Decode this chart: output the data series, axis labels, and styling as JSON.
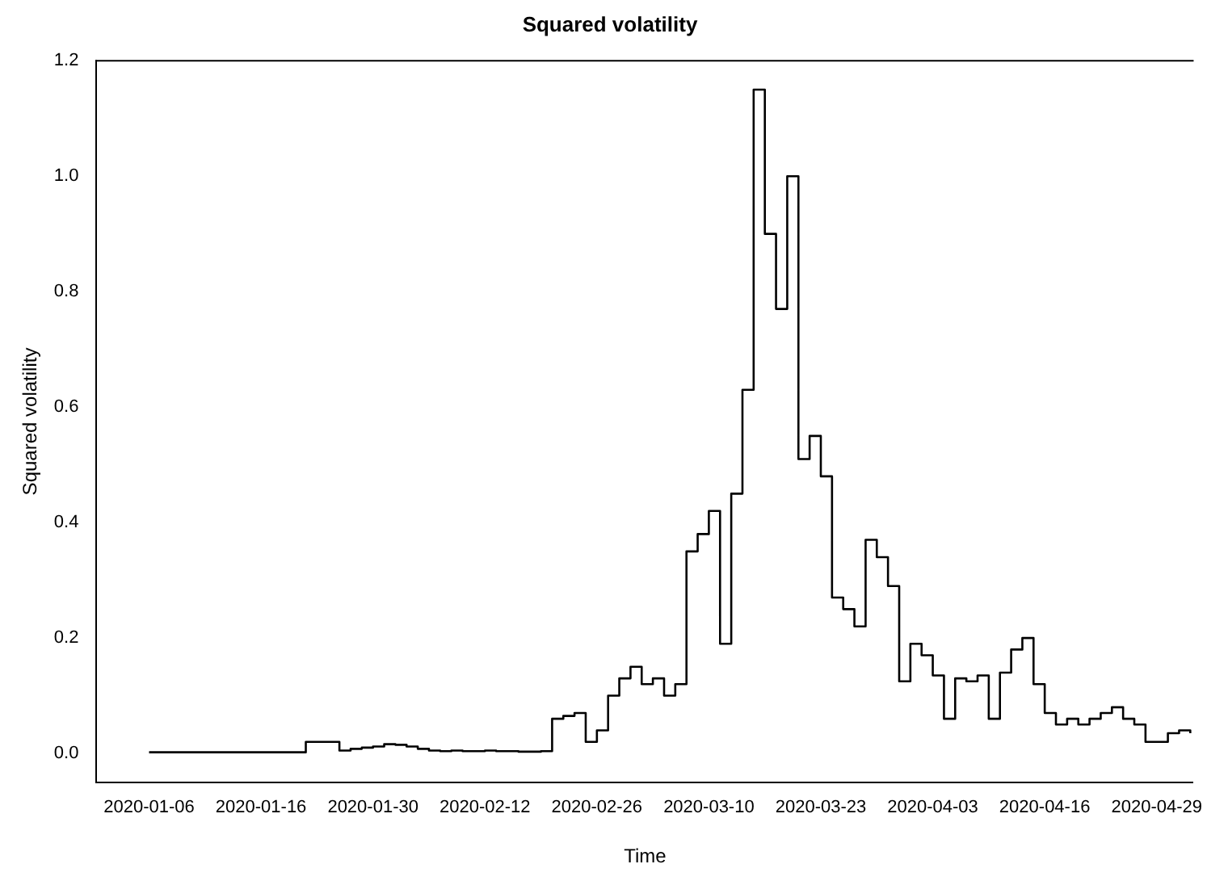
{
  "chart_data": {
    "type": "step",
    "title": "Squared volatility",
    "xlabel": "Time",
    "ylabel": "Squared volatility",
    "categories": [
      "2020-01-06",
      null,
      null,
      null,
      null,
      null,
      null,
      null,
      null,
      null,
      "2020-01-16",
      null,
      null,
      null,
      null,
      null,
      null,
      null,
      null,
      null,
      "2020-01-30",
      null,
      null,
      null,
      null,
      null,
      null,
      null,
      null,
      null,
      "2020-02-12",
      null,
      null,
      null,
      null,
      null,
      null,
      null,
      null,
      null,
      "2020-02-26",
      null,
      null,
      null,
      null,
      null,
      null,
      null,
      null,
      null,
      "2020-03-10",
      null,
      null,
      null,
      null,
      null,
      null,
      null,
      null,
      null,
      "2020-03-23",
      null,
      null,
      null,
      null,
      null,
      null,
      null,
      null,
      null,
      "2020-04-03",
      null,
      null,
      null,
      null,
      null,
      null,
      null,
      null,
      null,
      "2020-04-16",
      null,
      null,
      null,
      null,
      null,
      null,
      null,
      null,
      null,
      "2020-04-29",
      null,
      null,
      null
    ],
    "series": [
      {
        "color": "#000000",
        "values": [
          0.002,
          0.002,
          0.002,
          0.002,
          0.002,
          0.002,
          0.002,
          0.002,
          0.002,
          0.002,
          0.002,
          0.002,
          0.002,
          0.002,
          0.02,
          0.02,
          0.02,
          0.005,
          0.008,
          0.01,
          0.012,
          0.016,
          0.015,
          0.012,
          0.008,
          0.005,
          0.004,
          0.005,
          0.004,
          0.004,
          0.005,
          0.004,
          0.004,
          0.003,
          0.003,
          0.004,
          0.06,
          0.065,
          0.07,
          0.02,
          0.04,
          0.1,
          0.13,
          0.15,
          0.12,
          0.13,
          0.1,
          0.12,
          0.35,
          0.38,
          0.42,
          0.19,
          0.45,
          0.63,
          1.15,
          0.9,
          0.77,
          1.0,
          0.51,
          0.55,
          0.48,
          0.27,
          0.25,
          0.22,
          0.37,
          0.34,
          0.29,
          0.125,
          0.19,
          0.17,
          0.135,
          0.06,
          0.13,
          0.125,
          0.135,
          0.06,
          0.14,
          0.18,
          0.2,
          0.12,
          0.07,
          0.05,
          0.06,
          0.05,
          0.06,
          0.07,
          0.08,
          0.06,
          0.05,
          0.02,
          0.02,
          0.035,
          0.04,
          0.035
        ]
      }
    ],
    "ylim": [
      -0.05,
      1.2
    ],
    "yticks": [
      {
        "value": 0,
        "label": "0.0"
      },
      {
        "value": 0.2,
        "label": "0.2"
      },
      {
        "value": 0.4,
        "label": "0.4"
      },
      {
        "value": 0.6,
        "label": "0.6"
      },
      {
        "value": 0.8,
        "label": "0.8"
      },
      {
        "value": 1,
        "label": "1.0"
      },
      {
        "value": 1.2,
        "label": "1.2"
      }
    ]
  }
}
